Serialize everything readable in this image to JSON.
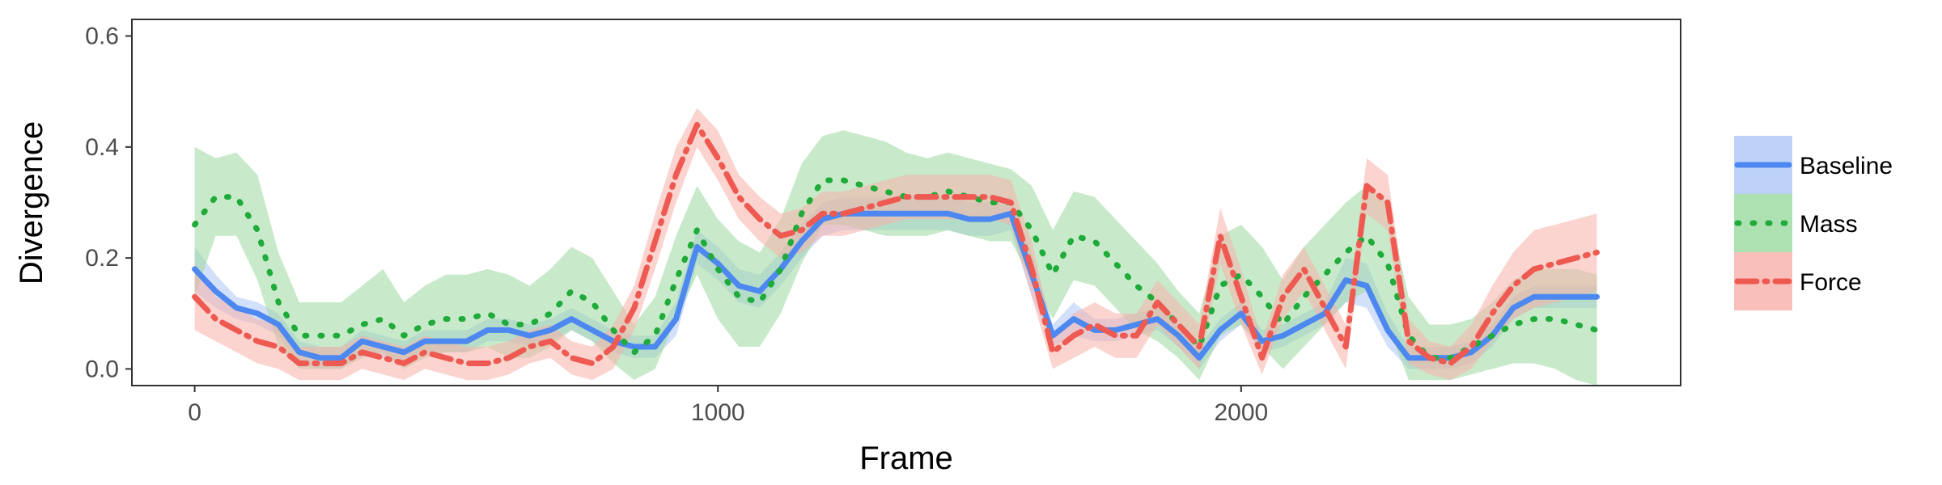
{
  "chart_data": {
    "type": "line",
    "title": "",
    "xlabel": "Frame",
    "ylabel": "Divergence",
    "xlim": [
      -120,
      2840
    ],
    "ylim": [
      -0.03,
      0.63
    ],
    "x_ticks": [
      0,
      1000,
      2000
    ],
    "y_ticks": [
      0.0,
      0.2,
      0.4,
      0.6
    ],
    "x_tick_labels": [
      "0",
      "1000",
      "2000"
    ],
    "y_tick_labels": [
      "0.0",
      "0.2",
      "0.4",
      "0.6"
    ],
    "grid": false,
    "legend_position": "right",
    "x": [
      0,
      40,
      80,
      120,
      160,
      200,
      240,
      280,
      320,
      360,
      400,
      440,
      480,
      520,
      560,
      600,
      640,
      680,
      720,
      760,
      800,
      840,
      880,
      920,
      960,
      1000,
      1040,
      1080,
      1120,
      1160,
      1200,
      1240,
      1280,
      1320,
      1360,
      1400,
      1440,
      1480,
      1520,
      1560,
      1600,
      1640,
      1680,
      1720,
      1760,
      1800,
      1840,
      1880,
      1920,
      1960,
      2000,
      2040,
      2080,
      2120,
      2160,
      2200,
      2240,
      2280,
      2320,
      2360,
      2400,
      2440,
      2480,
      2520,
      2560,
      2600,
      2640,
      2680
    ],
    "series": [
      {
        "name": "Baseline",
        "color": "#4d88f0",
        "band_color": "#aec7f5",
        "dash": "solid",
        "values": [
          0.18,
          0.14,
          0.11,
          0.1,
          0.08,
          0.03,
          0.02,
          0.02,
          0.05,
          0.04,
          0.03,
          0.05,
          0.05,
          0.05,
          0.07,
          0.07,
          0.06,
          0.07,
          0.09,
          0.07,
          0.05,
          0.04,
          0.04,
          0.09,
          0.22,
          0.19,
          0.15,
          0.14,
          0.18,
          0.23,
          0.27,
          0.28,
          0.28,
          0.28,
          0.28,
          0.28,
          0.28,
          0.27,
          0.27,
          0.28,
          0.17,
          0.06,
          0.09,
          0.07,
          0.07,
          0.08,
          0.09,
          0.06,
          0.02,
          0.07,
          0.1,
          0.05,
          0.06,
          0.08,
          0.1,
          0.16,
          0.15,
          0.07,
          0.02,
          0.02,
          0.02,
          0.03,
          0.06,
          0.11,
          0.13,
          0.13,
          0.13,
          0.13
        ],
        "lower": [
          0.14,
          0.11,
          0.09,
          0.08,
          0.06,
          0.01,
          0.0,
          0.0,
          0.03,
          0.02,
          0.01,
          0.03,
          0.03,
          0.03,
          0.05,
          0.05,
          0.04,
          0.05,
          0.07,
          0.05,
          0.03,
          0.02,
          0.02,
          0.06,
          0.19,
          0.16,
          0.12,
          0.11,
          0.15,
          0.2,
          0.24,
          0.25,
          0.25,
          0.25,
          0.25,
          0.25,
          0.25,
          0.24,
          0.24,
          0.25,
          0.13,
          0.04,
          0.06,
          0.05,
          0.05,
          0.06,
          0.07,
          0.04,
          0.0,
          0.05,
          0.08,
          0.03,
          0.04,
          0.06,
          0.08,
          0.12,
          0.11,
          0.04,
          0.0,
          0.0,
          0.0,
          0.01,
          0.04,
          0.09,
          0.11,
          0.11,
          0.11,
          0.11
        ],
        "upper": [
          0.22,
          0.17,
          0.13,
          0.12,
          0.1,
          0.05,
          0.04,
          0.04,
          0.07,
          0.06,
          0.05,
          0.07,
          0.07,
          0.07,
          0.09,
          0.09,
          0.08,
          0.09,
          0.11,
          0.09,
          0.07,
          0.06,
          0.06,
          0.12,
          0.25,
          0.22,
          0.18,
          0.17,
          0.21,
          0.26,
          0.3,
          0.31,
          0.31,
          0.31,
          0.31,
          0.31,
          0.31,
          0.3,
          0.3,
          0.31,
          0.21,
          0.08,
          0.12,
          0.09,
          0.09,
          0.1,
          0.11,
          0.08,
          0.04,
          0.09,
          0.12,
          0.07,
          0.08,
          0.1,
          0.12,
          0.2,
          0.19,
          0.1,
          0.04,
          0.04,
          0.04,
          0.05,
          0.08,
          0.13,
          0.15,
          0.15,
          0.15,
          0.15
        ]
      },
      {
        "name": "Mass",
        "color": "#1fab3a",
        "band_color": "#9ad99f",
        "dash": "dotted",
        "values": [
          0.26,
          0.31,
          0.31,
          0.25,
          0.12,
          0.06,
          0.06,
          0.06,
          0.08,
          0.09,
          0.06,
          0.08,
          0.09,
          0.09,
          0.1,
          0.08,
          0.08,
          0.1,
          0.14,
          0.12,
          0.07,
          0.03,
          0.06,
          0.16,
          0.25,
          0.18,
          0.13,
          0.12,
          0.18,
          0.28,
          0.34,
          0.34,
          0.33,
          0.32,
          0.31,
          0.31,
          0.32,
          0.31,
          0.3,
          0.3,
          0.25,
          0.17,
          0.24,
          0.23,
          0.19,
          0.15,
          0.12,
          0.08,
          0.04,
          0.15,
          0.17,
          0.13,
          0.08,
          0.13,
          0.17,
          0.21,
          0.24,
          0.19,
          0.06,
          0.02,
          0.02,
          0.04,
          0.06,
          0.08,
          0.09,
          0.09,
          0.08,
          0.07
        ],
        "lower": [
          0.13,
          0.24,
          0.24,
          0.16,
          0.04,
          0.0,
          0.0,
          0.0,
          0.02,
          0.03,
          0.0,
          0.02,
          0.03,
          0.03,
          0.04,
          0.02,
          0.02,
          0.04,
          0.07,
          0.05,
          0.01,
          -0.02,
          0.0,
          0.09,
          0.17,
          0.09,
          0.04,
          0.04,
          0.1,
          0.19,
          0.26,
          0.26,
          0.25,
          0.24,
          0.24,
          0.24,
          0.25,
          0.24,
          0.23,
          0.23,
          0.16,
          0.09,
          0.16,
          0.15,
          0.11,
          0.07,
          0.05,
          0.02,
          -0.02,
          0.06,
          0.08,
          0.04,
          0.0,
          0.04,
          0.08,
          0.12,
          0.14,
          0.08,
          -0.02,
          -0.02,
          -0.02,
          -0.01,
          0.0,
          0.01,
          0.01,
          0.0,
          -0.02,
          -0.03
        ],
        "upper": [
          0.4,
          0.38,
          0.39,
          0.35,
          0.21,
          0.12,
          0.12,
          0.12,
          0.15,
          0.18,
          0.12,
          0.15,
          0.17,
          0.17,
          0.18,
          0.17,
          0.15,
          0.18,
          0.22,
          0.2,
          0.14,
          0.08,
          0.13,
          0.24,
          0.33,
          0.27,
          0.23,
          0.21,
          0.27,
          0.37,
          0.42,
          0.43,
          0.42,
          0.41,
          0.39,
          0.38,
          0.39,
          0.38,
          0.37,
          0.36,
          0.33,
          0.25,
          0.32,
          0.31,
          0.27,
          0.23,
          0.19,
          0.14,
          0.1,
          0.24,
          0.26,
          0.22,
          0.16,
          0.22,
          0.26,
          0.3,
          0.33,
          0.3,
          0.13,
          0.08,
          0.08,
          0.09,
          0.12,
          0.16,
          0.18,
          0.18,
          0.18,
          0.17
        ]
      },
      {
        "name": "Force",
        "color": "#ee5a52",
        "band_color": "#f7b0aa",
        "dash": "dashdot",
        "values": [
          0.13,
          0.09,
          0.07,
          0.05,
          0.04,
          0.01,
          0.01,
          0.01,
          0.03,
          0.02,
          0.01,
          0.03,
          0.02,
          0.01,
          0.01,
          0.02,
          0.04,
          0.05,
          0.02,
          0.01,
          0.04,
          0.11,
          0.23,
          0.35,
          0.44,
          0.38,
          0.31,
          0.27,
          0.24,
          0.25,
          0.28,
          0.28,
          0.29,
          0.3,
          0.31,
          0.31,
          0.31,
          0.31,
          0.31,
          0.3,
          0.18,
          0.03,
          0.06,
          0.08,
          0.06,
          0.06,
          0.12,
          0.08,
          0.04,
          0.24,
          0.13,
          0.02,
          0.13,
          0.18,
          0.11,
          0.04,
          0.33,
          0.3,
          0.05,
          0.02,
          0.01,
          0.04,
          0.1,
          0.15,
          0.18,
          0.19,
          0.2,
          0.21
        ],
        "lower": [
          0.07,
          0.05,
          0.03,
          0.01,
          0.0,
          -0.02,
          -0.02,
          -0.02,
          0.0,
          -0.01,
          -0.02,
          0.0,
          -0.01,
          -0.02,
          -0.02,
          -0.01,
          0.01,
          0.02,
          -0.01,
          -0.02,
          0.0,
          0.07,
          0.18,
          0.3,
          0.4,
          0.34,
          0.27,
          0.23,
          0.2,
          0.21,
          0.24,
          0.24,
          0.25,
          0.26,
          0.27,
          0.27,
          0.27,
          0.27,
          0.27,
          0.26,
          0.13,
          0.0,
          0.02,
          0.04,
          0.02,
          0.02,
          0.08,
          0.04,
          0.0,
          0.19,
          0.08,
          -0.01,
          0.09,
          0.14,
          0.07,
          0.0,
          0.28,
          0.25,
          0.01,
          -0.01,
          -0.02,
          0.0,
          0.05,
          0.09,
          0.11,
          0.12,
          0.13,
          0.14
        ],
        "upper": [
          0.19,
          0.13,
          0.11,
          0.09,
          0.08,
          0.04,
          0.04,
          0.04,
          0.06,
          0.05,
          0.04,
          0.06,
          0.05,
          0.04,
          0.04,
          0.05,
          0.07,
          0.08,
          0.05,
          0.04,
          0.08,
          0.15,
          0.28,
          0.4,
          0.47,
          0.43,
          0.35,
          0.31,
          0.28,
          0.29,
          0.32,
          0.32,
          0.33,
          0.34,
          0.35,
          0.35,
          0.35,
          0.35,
          0.35,
          0.34,
          0.23,
          0.06,
          0.1,
          0.12,
          0.1,
          0.1,
          0.16,
          0.12,
          0.08,
          0.29,
          0.18,
          0.05,
          0.17,
          0.22,
          0.15,
          0.08,
          0.38,
          0.35,
          0.09,
          0.05,
          0.04,
          0.08,
          0.15,
          0.21,
          0.25,
          0.26,
          0.27,
          0.28
        ]
      }
    ]
  }
}
